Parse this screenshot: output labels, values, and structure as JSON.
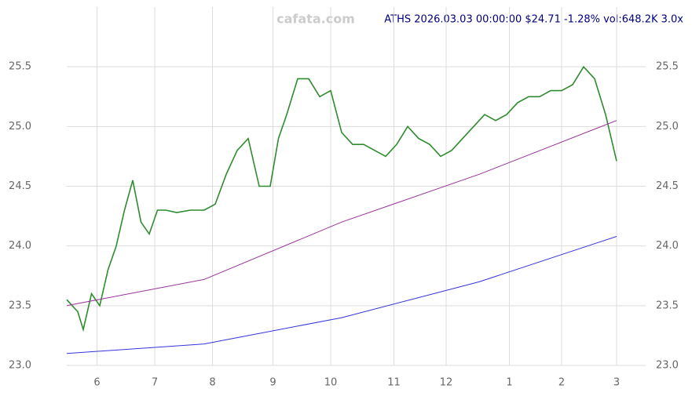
{
  "chart_data": {
    "type": "line",
    "title": "ATHS 2026.03.03 00:00:00 $24.71 -1.28% vol:648.2K 3.0x",
    "watermark": "cafata.com",
    "x": [
      0,
      4,
      6,
      9,
      12,
      15,
      18,
      21,
      24,
      27,
      30,
      33,
      36,
      40,
      45,
      50,
      54,
      58,
      62,
      66,
      70,
      74,
      77,
      80,
      84,
      88,
      92,
      96,
      100,
      104,
      108,
      112,
      116,
      120,
      124,
      128,
      132,
      136,
      140,
      144,
      148,
      152,
      156,
      160,
      164,
      168,
      172,
      176,
      180,
      184,
      188,
      192,
      196,
      200
    ],
    "series": [
      {
        "color": "#2e8b2e",
        "values": [
          23.55,
          23.45,
          23.3,
          23.6,
          23.5,
          23.8,
          24.0,
          24.3,
          24.55,
          24.2,
          24.1,
          24.3,
          24.3,
          24.28,
          24.3,
          24.3,
          24.35,
          24.6,
          24.8,
          24.9,
          24.5,
          24.5,
          24.9,
          25.1,
          25.4,
          25.4,
          25.25,
          25.3,
          24.95,
          24.85,
          24.85,
          24.8,
          24.75,
          24.85,
          25.0,
          24.9,
          24.85,
          24.75,
          24.8,
          24.9,
          25.0,
          25.1,
          25.05,
          25.1,
          25.2,
          25.25,
          25.25,
          25.3,
          25.3,
          25.35,
          25.5,
          25.4,
          25.1,
          24.71
        ]
      },
      {
        "color": "#3333dd",
        "x": [
          0,
          50,
          100,
          150,
          200
        ],
        "values": [
          23.1,
          23.18,
          23.4,
          23.7,
          24.08
        ]
      },
      {
        "color": "#993399",
        "x": [
          0,
          50,
          100,
          150,
          200
        ],
        "values": [
          23.5,
          23.72,
          24.2,
          24.6,
          25.05
        ]
      }
    ],
    "xlim": [
      0,
      202
    ],
    "xticks": [
      {
        "value": 11,
        "label": "6"
      },
      {
        "value": 32,
        "label": "7"
      },
      {
        "value": 53,
        "label": "8"
      },
      {
        "value": 75,
        "label": "9"
      },
      {
        "value": 96,
        "label": "10"
      },
      {
        "value": 119,
        "label": "11"
      },
      {
        "value": 138,
        "label": "12"
      },
      {
        "value": 161,
        "label": "1"
      },
      {
        "value": 180,
        "label": "2"
      },
      {
        "value": 200,
        "label": "3"
      }
    ],
    "ylim": [
      23,
      26
    ],
    "yticks": [
      {
        "value": 23,
        "label": "23.0"
      },
      23.5,
      {
        "value": 24,
        "label": "24.0"
      },
      24.5,
      {
        "value": 25,
        "label": "25.0"
      },
      25.5
    ],
    "grid": true
  }
}
